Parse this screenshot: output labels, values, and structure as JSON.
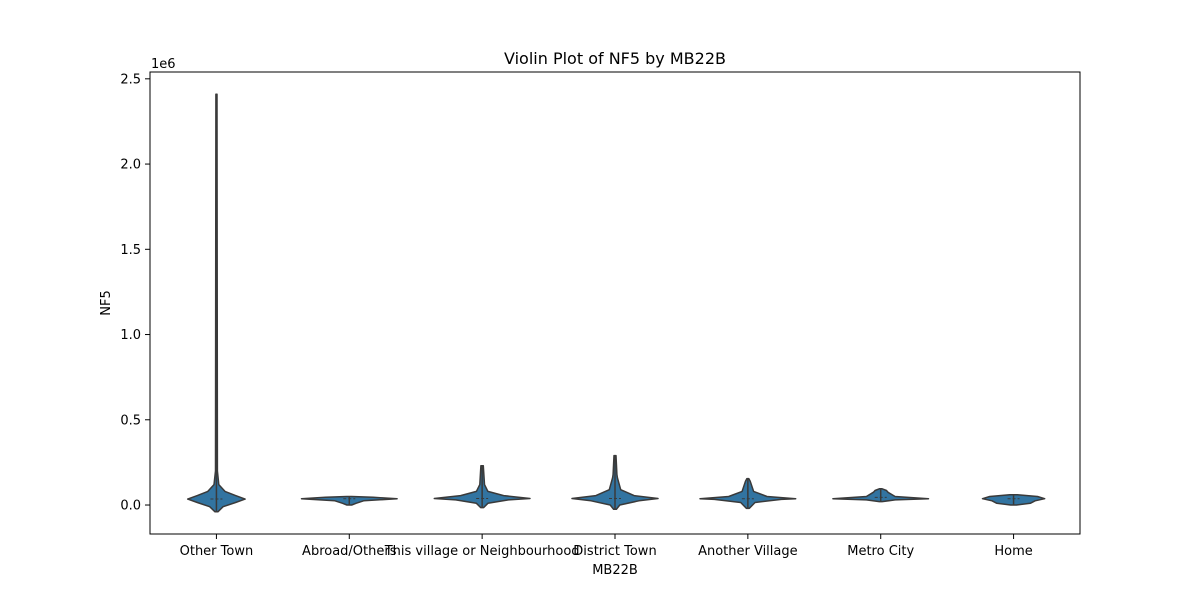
{
  "chart_data": {
    "type": "violin",
    "title": "Violin Plot of NF5 by MB22B",
    "xlabel": "MB22B",
    "ylabel": "NF5",
    "y_offset_label": "1e6",
    "ylim": [
      -170000,
      2540000
    ],
    "yticks": [
      0.0,
      0.5,
      1.0,
      1.5,
      2.0,
      2.5
    ],
    "ytick_labels": [
      "0.0",
      "0.5",
      "1.0",
      "1.5",
      "2.0",
      "2.5"
    ],
    "y_tick_scale": 1000000,
    "categories": [
      "Other Town",
      "Abroad/Others",
      "This village or Neighbourhood",
      "District Town",
      "Another Village",
      "Metro City",
      "Home"
    ],
    "fill_color": "#3274a1",
    "edge_color": "#3a3a3a",
    "violins": [
      {
        "category": "Other Town",
        "min": -40000,
        "max": 2410000,
        "median": 35000,
        "profile": [
          [
            -40000,
            0.03
          ],
          [
            -10000,
            0.14
          ],
          [
            15000,
            0.4
          ],
          [
            35000,
            0.6
          ],
          [
            55000,
            0.4
          ],
          [
            80000,
            0.18
          ],
          [
            120000,
            0.05
          ],
          [
            200000,
            0.02
          ],
          [
            2410000,
            0.012
          ]
        ]
      },
      {
        "category": "Abroad/Others",
        "min": 0,
        "max": 50000,
        "median": 37000,
        "profile": [
          [
            0,
            0.05
          ],
          [
            10000,
            0.14
          ],
          [
            25000,
            0.3
          ],
          [
            37000,
            1.0
          ],
          [
            45000,
            0.5
          ],
          [
            50000,
            0.05
          ]
        ]
      },
      {
        "category": "This village or Neighbourhood",
        "min": -15000,
        "max": 230000,
        "median": 38000,
        "profile": [
          [
            -15000,
            0.03
          ],
          [
            10000,
            0.12
          ],
          [
            30000,
            0.55
          ],
          [
            38000,
            1.0
          ],
          [
            55000,
            0.45
          ],
          [
            80000,
            0.12
          ],
          [
            120000,
            0.05
          ],
          [
            230000,
            0.025
          ]
        ]
      },
      {
        "category": "District Town",
        "min": -25000,
        "max": 290000,
        "median": 38000,
        "profile": [
          [
            -25000,
            0.03
          ],
          [
            0,
            0.1
          ],
          [
            25000,
            0.5
          ],
          [
            38000,
            0.9
          ],
          [
            55000,
            0.4
          ],
          [
            90000,
            0.12
          ],
          [
            160000,
            0.05
          ],
          [
            180000,
            0.04
          ],
          [
            290000,
            0.02
          ]
        ]
      },
      {
        "category": "Another Village",
        "min": -20000,
        "max": 155000,
        "median": 37000,
        "profile": [
          [
            -20000,
            0.03
          ],
          [
            15000,
            0.15
          ],
          [
            33000,
            0.7
          ],
          [
            37000,
            1.0
          ],
          [
            50000,
            0.4
          ],
          [
            80000,
            0.12
          ],
          [
            140000,
            0.05
          ],
          [
            155000,
            0.02
          ]
        ]
      },
      {
        "category": "Metro City",
        "min": 20000,
        "max": 95000,
        "median": 45000,
        "profile": [
          [
            20000,
            0.03
          ],
          [
            30000,
            0.3
          ],
          [
            37000,
            1.0
          ],
          [
            50000,
            0.3
          ],
          [
            75000,
            0.15
          ],
          [
            85000,
            0.12
          ],
          [
            95000,
            0.03
          ]
        ]
      },
      {
        "category": "Home",
        "min": 0,
        "max": 60000,
        "median": 37000,
        "profile": [
          [
            0,
            0.06
          ],
          [
            10000,
            0.35
          ],
          [
            25000,
            0.45
          ],
          [
            37000,
            0.65
          ],
          [
            50000,
            0.5
          ],
          [
            60000,
            0.08
          ]
        ]
      }
    ]
  }
}
